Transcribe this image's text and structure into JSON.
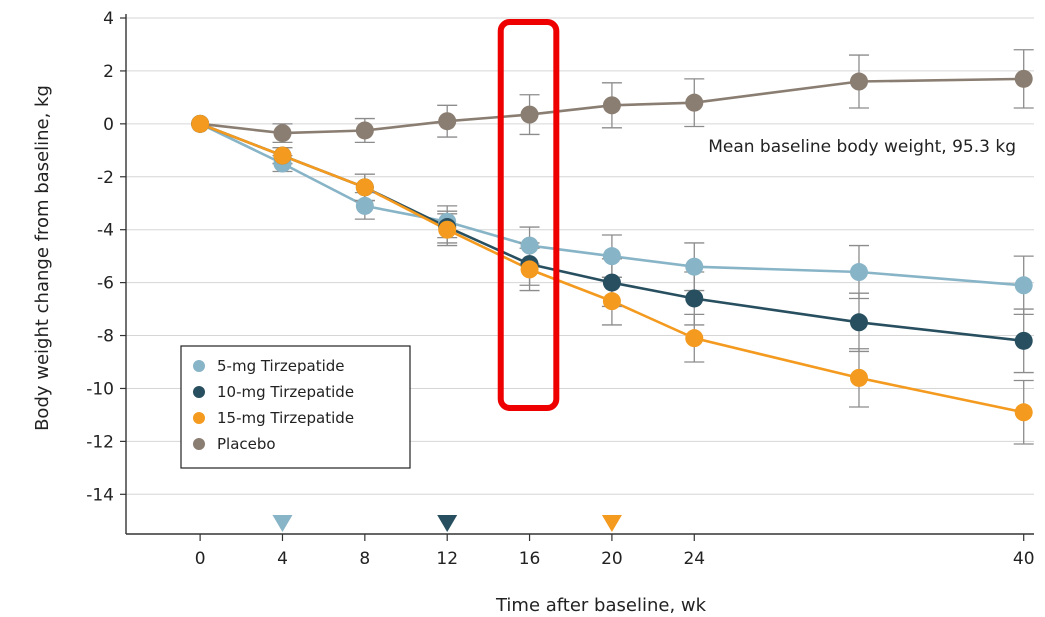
{
  "chart_data": {
    "type": "line",
    "xlabel": "Time after baseline, wk",
    "ylabel": "Body weight change from baseline, kg",
    "xlim": [
      -3.6,
      40.5
    ],
    "ylim": [
      -15.5,
      4
    ],
    "x_ticks": [
      0,
      4,
      8,
      12,
      16,
      20,
      24,
      40
    ],
    "x_tick_labels": [
      "0",
      "4",
      "8",
      "12",
      "16",
      "20",
      "24",
      "40"
    ],
    "y_ticks": [
      4,
      2,
      0,
      -2,
      -4,
      -6,
      -8,
      -10,
      -12,
      -14
    ],
    "y_tick_labels": [
      "4",
      "2",
      "0",
      "-2",
      "-4",
      "-6",
      "-8",
      "-10",
      "-12",
      "-14"
    ],
    "grid": "horizontal",
    "legend_position": "bottom-left",
    "annotation": "Mean baseline body weight, 95.3 kg",
    "highlight": {
      "x_range": [
        14.6,
        17.3
      ],
      "color": "#ee0000"
    },
    "markers": [
      {
        "x": 4,
        "series": "5-mg Tirzepatide"
      },
      {
        "x": 12,
        "series": "10-mg Tirzepatide"
      },
      {
        "x": 20,
        "series": "15-mg Tirzepatide"
      }
    ],
    "series": [
      {
        "name": "5-mg Tirzepatide",
        "color": "#88b4c7",
        "x": [
          0,
          4,
          8,
          12,
          16,
          20,
          24,
          32,
          40
        ],
        "y": [
          0,
          -1.5,
          -3.1,
          -3.7,
          -4.6,
          -5.0,
          -5.4,
          -5.6,
          -6.1
        ],
        "err": [
          0,
          0.3,
          0.5,
          0.6,
          0.7,
          0.8,
          0.9,
          1.0,
          1.1
        ]
      },
      {
        "name": "10-mg Tirzepatide",
        "color": "#284f5f",
        "x": [
          0,
          4,
          8,
          12,
          16,
          20,
          24,
          32,
          40
        ],
        "y": [
          0,
          -1.2,
          -2.4,
          -3.9,
          -5.3,
          -6.0,
          -6.6,
          -7.5,
          -8.2
        ],
        "err": [
          0,
          0.3,
          0.5,
          0.6,
          0.8,
          0.9,
          1.0,
          1.1,
          1.2
        ]
      },
      {
        "name": "15-mg Tirzepatide",
        "color": "#f39a1f",
        "x": [
          0,
          4,
          8,
          12,
          16,
          20,
          24,
          32,
          40
        ],
        "y": [
          0,
          -1.2,
          -2.4,
          -4.0,
          -5.5,
          -6.7,
          -8.1,
          -9.6,
          -10.9
        ],
        "err": [
          0,
          0.3,
          0.5,
          0.6,
          0.8,
          0.9,
          0.9,
          1.1,
          1.2
        ]
      },
      {
        "name": "Placebo",
        "color": "#8a7d71",
        "x": [
          0,
          4,
          8,
          12,
          16,
          20,
          24,
          32,
          40
        ],
        "y": [
          0,
          -0.35,
          -0.25,
          0.1,
          0.35,
          0.7,
          0.8,
          1.6,
          1.7
        ],
        "err": [
          0,
          0.35,
          0.45,
          0.6,
          0.75,
          0.85,
          0.9,
          1.0,
          1.1
        ]
      }
    ]
  }
}
